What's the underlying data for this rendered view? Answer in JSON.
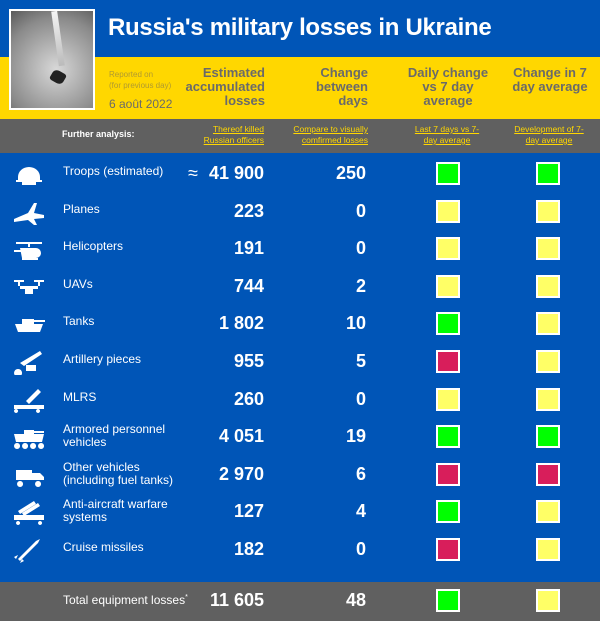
{
  "header": {
    "title": "Russia's military losses in Ukraine",
    "reported_on": "Reported on",
    "for_previous_day": "(for previous day)",
    "date": "6 août 2022",
    "columns": [
      "Estimated accumulated losses",
      "Change between days",
      "Daily change vs 7 day average",
      "Change in 7 day average"
    ]
  },
  "analysis": {
    "label": "Further analysis:",
    "links": [
      "Thereof killed Russian officers",
      "Compare to visually comfirmed losses",
      "Last 7 days vs 7-day average",
      "Development of 7-day average"
    ]
  },
  "colors": {
    "green": "#00ff00",
    "yellow": "#ffff66",
    "red": "#d81e5b",
    "blue": "#0055b7",
    "gold": "#ffd700",
    "gray": "#606060"
  },
  "rows": [
    {
      "label": "Troops (estimated)",
      "approx": "≈",
      "value": "41 900",
      "change": "250",
      "daily": "green",
      "avg": "green",
      "icon": "helmet-icon"
    },
    {
      "label": "Planes",
      "value": "223",
      "change": "0",
      "daily": "yellow",
      "avg": "yellow",
      "icon": "plane-icon"
    },
    {
      "label": "Helicopters",
      "value": "191",
      "change": "0",
      "daily": "yellow",
      "avg": "yellow",
      "icon": "helicopter-icon"
    },
    {
      "label": "UAVs",
      "value": "744",
      "change": "2",
      "daily": "yellow",
      "avg": "yellow",
      "icon": "drone-icon"
    },
    {
      "label": "Tanks",
      "value": "1 802",
      "change": "10",
      "daily": "green",
      "avg": "yellow",
      "icon": "tank-icon"
    },
    {
      "label": "Artillery pieces",
      "value": "955",
      "change": "5",
      "daily": "red",
      "avg": "yellow",
      "icon": "artillery-icon"
    },
    {
      "label": "MLRS",
      "value": "260",
      "change": "0",
      "daily": "yellow",
      "avg": "yellow",
      "icon": "mlrs-icon"
    },
    {
      "label": "Armored personnel vehicles",
      "value": "4 051",
      "change": "19",
      "daily": "green",
      "avg": "green",
      "icon": "apc-icon"
    },
    {
      "label": "Other vehicles (including fuel tanks)",
      "value": "2 970",
      "change": "6",
      "daily": "red",
      "avg": "red",
      "icon": "vehicle-icon"
    },
    {
      "label": "Anti-aircraft warfare systems",
      "value": "127",
      "change": "4",
      "daily": "green",
      "avg": "yellow",
      "icon": "anti-aircraft-icon"
    },
    {
      "label": "Cruise missiles",
      "value": "182",
      "change": "0",
      "daily": "red",
      "avg": "yellow",
      "icon": "missile-icon"
    }
  ],
  "total": {
    "label": "Total equipment losses",
    "note": "*",
    "value": "11 605",
    "change": "48",
    "daily": "green",
    "avg": "yellow"
  }
}
